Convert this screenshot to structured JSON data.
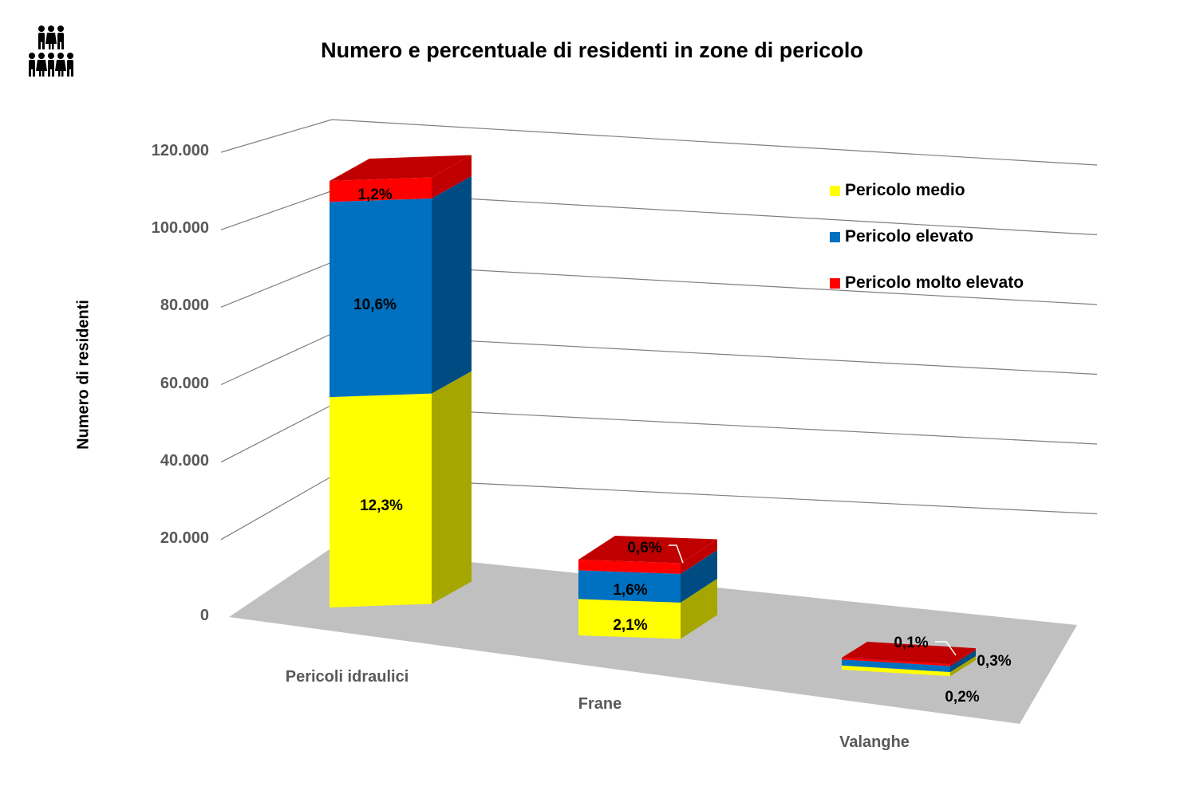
{
  "title": "Numero e percentuale di residenti in zone di pericolo",
  "icon": "people-group-icon",
  "chart_data": {
    "type": "bar",
    "stacked": true,
    "three_d": true,
    "title": "Numero e percentuale di residenti in zone di pericolo",
    "xlabel": "",
    "ylabel": "Numero di residenti",
    "ylim": [
      0,
      120000
    ],
    "yticks": [
      "0",
      "20.000",
      "40.000",
      "60.000",
      "80.000",
      "100.000",
      "120.000"
    ],
    "yticks_values": [
      0,
      20000,
      40000,
      60000,
      80000,
      100000,
      120000
    ],
    "categories": [
      "Pericoli idraulici",
      "Frane",
      "Valanghe"
    ],
    "series": [
      {
        "name": "Pericolo medio",
        "color": "#FFFF00",
        "values": [
          55000,
          9500,
          900
        ],
        "labels": [
          "12,3%",
          "2,1%",
          "0,2%"
        ]
      },
      {
        "name": "Pericolo elevato",
        "color": "#0070C0",
        "values": [
          51000,
          7500,
          1300
        ],
        "labels": [
          "10,6%",
          "1,6%",
          "0,3%"
        ]
      },
      {
        "name": "Pericolo molto elevato",
        "color": "#FF0000",
        "values": [
          5500,
          2800,
          400
        ],
        "labels": [
          "1,2%",
          "0,6%",
          "0,1%"
        ]
      }
    ],
    "grid": true,
    "legend": "top-right"
  }
}
